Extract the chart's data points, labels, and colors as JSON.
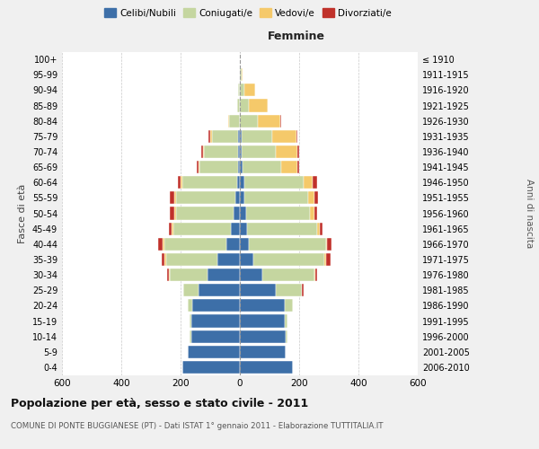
{
  "age_groups": [
    "0-4",
    "5-9",
    "10-14",
    "15-19",
    "20-24",
    "25-29",
    "30-34",
    "35-39",
    "40-44",
    "45-49",
    "50-54",
    "55-59",
    "60-64",
    "65-69",
    "70-74",
    "75-79",
    "80-84",
    "85-89",
    "90-94",
    "95-99",
    "100+"
  ],
  "birth_years": [
    "2006-2010",
    "2001-2005",
    "1996-2000",
    "1991-1995",
    "1986-1990",
    "1981-1985",
    "1976-1980",
    "1971-1975",
    "1966-1970",
    "1961-1965",
    "1956-1960",
    "1951-1955",
    "1946-1950",
    "1941-1945",
    "1936-1940",
    "1931-1935",
    "1926-1930",
    "1921-1925",
    "1916-1920",
    "1911-1915",
    "≤ 1910"
  ],
  "males": {
    "celibi": [
      195,
      175,
      165,
      165,
      160,
      140,
      110,
      75,
      45,
      30,
      20,
      15,
      10,
      5,
      5,
      5,
      0,
      0,
      0,
      0,
      0
    ],
    "coniugati": [
      0,
      0,
      5,
      5,
      15,
      50,
      125,
      175,
      210,
      195,
      195,
      200,
      185,
      130,
      115,
      90,
      35,
      10,
      5,
      0,
      0
    ],
    "vedovi": [
      0,
      0,
      0,
      0,
      0,
      0,
      5,
      5,
      5,
      5,
      5,
      5,
      5,
      5,
      5,
      5,
      5,
      0,
      0,
      0,
      0
    ],
    "divorziati": [
      0,
      0,
      0,
      0,
      0,
      0,
      5,
      10,
      15,
      10,
      15,
      15,
      10,
      5,
      5,
      5,
      0,
      0,
      0,
      0,
      0
    ]
  },
  "females": {
    "nubili": [
      180,
      155,
      155,
      150,
      150,
      120,
      75,
      45,
      30,
      25,
      20,
      15,
      15,
      10,
      5,
      5,
      0,
      0,
      0,
      0,
      0
    ],
    "coniugate": [
      0,
      0,
      5,
      10,
      30,
      90,
      175,
      240,
      260,
      235,
      215,
      215,
      200,
      130,
      115,
      105,
      60,
      30,
      15,
      5,
      0
    ],
    "vedove": [
      0,
      0,
      0,
      0,
      0,
      0,
      5,
      5,
      5,
      10,
      15,
      20,
      30,
      55,
      75,
      80,
      75,
      65,
      35,
      5,
      0
    ],
    "divorziate": [
      0,
      0,
      0,
      0,
      0,
      5,
      5,
      15,
      15,
      10,
      10,
      15,
      15,
      5,
      5,
      5,
      5,
      0,
      0,
      0,
      0
    ]
  },
  "colors": {
    "celibi": "#3d6fa8",
    "coniugati": "#c5d6a0",
    "vedovi": "#f5c96a",
    "divorziati": "#c0312a"
  },
  "xlim": 600,
  "title": "Popolazione per età, sesso e stato civile - 2011",
  "subtitle": "COMUNE DI PONTE BUGGIANESE (PT) - Dati ISTAT 1° gennaio 2011 - Elaborazione TUTTITALIA.IT",
  "ylabel_left": "Fasce di età",
  "ylabel_right": "Anni di nascita",
  "xlabel_right": "Femmine",
  "bg_color": "#f0f0f0",
  "plot_bg_color": "#ffffff"
}
